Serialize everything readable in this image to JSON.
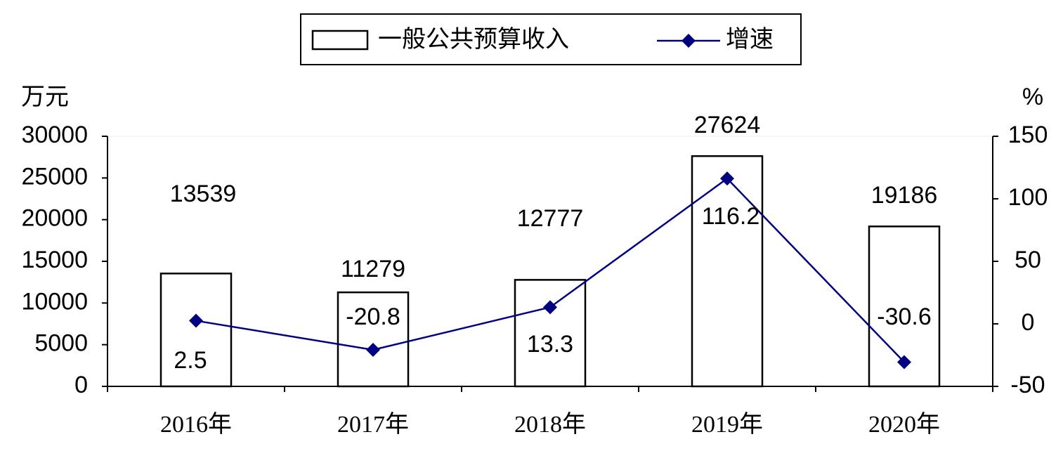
{
  "chart_data": {
    "type": "bar",
    "categories": [
      "2016年",
      "2017年",
      "2018年",
      "2019年",
      "2020年"
    ],
    "y_label": "万元",
    "y2_label": "%",
    "ylim": [
      0,
      30000
    ],
    "yticks": [
      0,
      5000,
      10000,
      15000,
      20000,
      25000,
      30000
    ],
    "y2lim": [
      -50,
      150
    ],
    "y2ticks": [
      -50,
      0,
      50,
      100,
      150
    ],
    "series": [
      {
        "name": "一般公共预算收入",
        "type": "bar",
        "color": "#ffffff",
        "values": [
          13539,
          11279,
          12777,
          27624,
          19186
        ]
      },
      {
        "name": "增速",
        "type": "line",
        "axis": "y2",
        "color": "#000080",
        "values": [
          2.5,
          -20.8,
          13.3,
          116.2,
          -30.6
        ]
      }
    ]
  }
}
